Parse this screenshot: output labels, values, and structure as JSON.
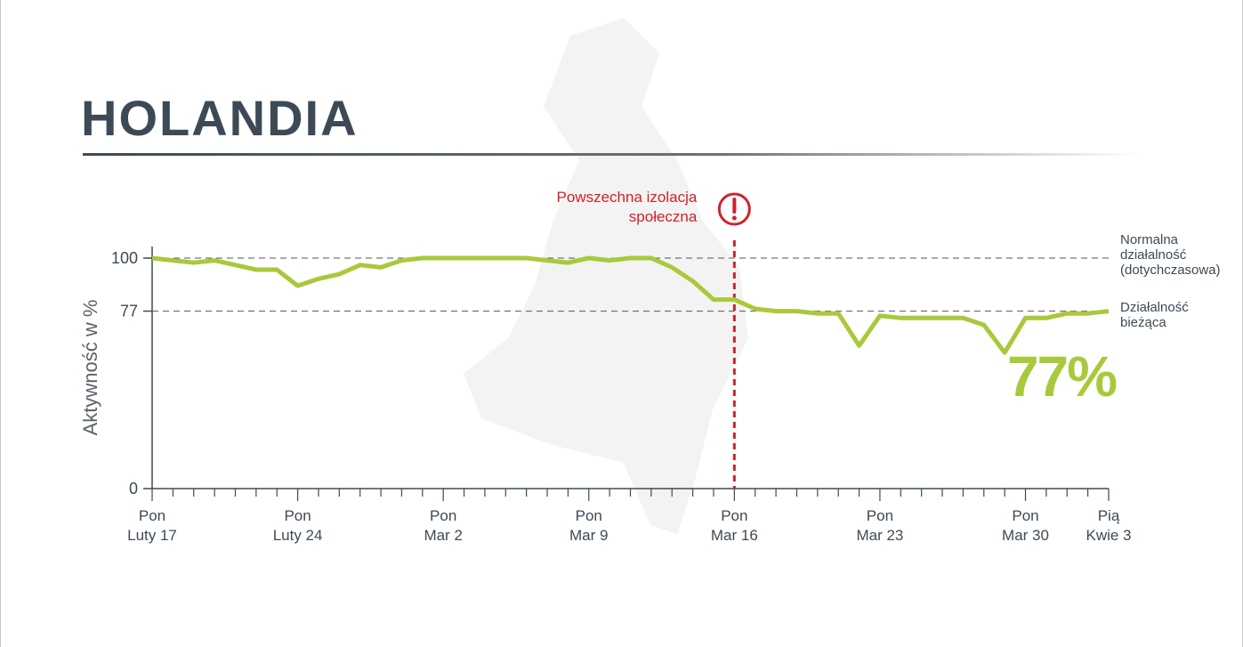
{
  "chart_data": {
    "type": "line",
    "title": "HOLANDIA",
    "y_label": "Aktywność w %",
    "categories": [
      "Pon\nLuty 17",
      null,
      null,
      null,
      null,
      null,
      null,
      "Pon\nLuty 24",
      null,
      null,
      null,
      null,
      null,
      null,
      "Pon\nMar 2",
      null,
      null,
      null,
      null,
      null,
      null,
      "Pon\nMar 9",
      null,
      null,
      null,
      null,
      null,
      null,
      "Pon\nMar 16",
      null,
      null,
      null,
      null,
      null,
      null,
      "Pon\nMar 23",
      null,
      null,
      null,
      null,
      null,
      null,
      "Pon\nMar 30",
      null,
      null,
      null,
      "Pią\nKwie 3"
    ],
    "series": [
      {
        "color": "#a9c93c",
        "values": [
          100,
          99,
          98,
          99,
          97,
          95,
          95,
          88,
          91,
          93,
          97,
          96,
          99,
          100,
          100,
          100,
          100,
          100,
          100,
          99,
          98,
          100,
          99,
          100,
          100,
          96,
          90,
          82,
          82,
          78,
          77,
          77,
          76,
          76,
          62,
          75,
          74,
          74,
          74,
          74,
          71,
          59,
          74,
          74,
          76,
          76,
          77
        ]
      }
    ],
    "ylim": [
      0,
      100
    ],
    "yticks": [
      0,
      77,
      100
    ],
    "reference_lines": [
      {
        "value": 100,
        "label": "Normalna\ndziałalność\n(dotychczasowa)"
      },
      {
        "value": 77,
        "label": "Działalność\nbieżąca"
      }
    ],
    "event": {
      "label": "Powszechna izolacja\nspołeczna",
      "at": "Pon\nMar 16",
      "color": "#d0222b"
    },
    "end_label": {
      "value": 77,
      "label": "77%"
    }
  }
}
